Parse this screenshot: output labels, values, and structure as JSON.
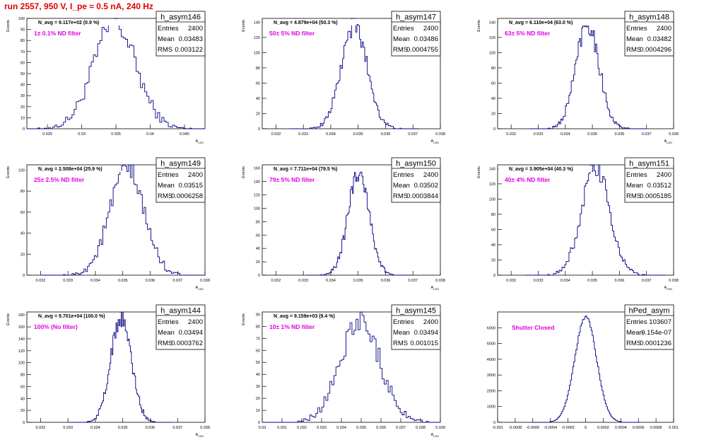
{
  "header": {
    "title": "run 2557,   950 V, I_pe ≈ 0.5 nA, 240 Hz"
  },
  "chart_data": [
    {
      "type": "bar",
      "name": "h_asym146",
      "title": "N_avg = 9.117e+02 (0.9 %)",
      "label": "1± 0.1% ND filter",
      "xlabel": "A_LED",
      "ylabel": "Events",
      "xlim": [
        0.022,
        0.048
      ],
      "ylim": [
        0,
        100
      ],
      "xticks": [
        "0.025",
        "0.03",
        "0.035",
        "0.04",
        "0.045"
      ],
      "xtick_values": [
        0.025,
        0.03,
        0.035,
        0.04,
        0.045
      ],
      "yticks": [
        0,
        10,
        20,
        30,
        40,
        50,
        60,
        70,
        80,
        90,
        100
      ],
      "stats": {
        "entries": "2400",
        "mean": "0.03483",
        "rms": "0.003122"
      },
      "mean": 0.03483,
      "rms": 0.003122,
      "entries": 2400,
      "peak": 95
    },
    {
      "type": "bar",
      "name": "h_asym147",
      "title": "N_avg = 4.879e+04 (50.3 %)",
      "label": "50± 5% ND filter",
      "xlabel": "A_LED",
      "ylabel": "Events",
      "xlim": [
        0.0315,
        0.038
      ],
      "ylim": [
        0,
        145
      ],
      "xticks": [
        "0.032",
        "0.033",
        "0.034",
        "0.035",
        "0.036",
        "0.037",
        "0.038"
      ],
      "xtick_values": [
        0.032,
        0.033,
        0.034,
        0.035,
        0.036,
        0.037,
        0.038
      ],
      "yticks": [
        0,
        20,
        40,
        60,
        80,
        100,
        120,
        140
      ],
      "stats": {
        "entries": "2400",
        "mean": "0.03486",
        "rms": "0.0004755"
      },
      "mean": 0.03486,
      "rms": 0.0004755,
      "entries": 2400,
      "peak": 135
    },
    {
      "type": "bar",
      "name": "h_asym148",
      "title": "N_avg = 6.110e+04 (63.0 %)",
      "label": "63± 5% ND filter",
      "xlabel": "A_LED",
      "ylabel": "Events",
      "xlim": [
        0.0315,
        0.038
      ],
      "ylim": [
        0,
        145
      ],
      "xticks": [
        "0.032",
        "0.033",
        "0.034",
        "0.035",
        "0.036",
        "0.037",
        "0.038"
      ],
      "xtick_values": [
        0.032,
        0.033,
        0.034,
        0.035,
        0.036,
        0.037,
        0.038
      ],
      "yticks": [
        0,
        20,
        40,
        60,
        80,
        100,
        120,
        140
      ],
      "stats": {
        "entries": "2400",
        "mean": "0.03482",
        "rms": "0.0004296"
      },
      "mean": 0.03482,
      "rms": 0.0004296,
      "entries": 2400,
      "peak": 140
    },
    {
      "type": "bar",
      "name": "h_asym149",
      "title": "N_avg = 2.508e+04 (25.9 %)",
      "label": "25± 2.5% ND filter",
      "xlabel": "A_LED",
      "ylabel": "Events",
      "xlim": [
        0.0315,
        0.038
      ],
      "ylim": [
        0,
        105
      ],
      "xticks": [
        "0.032",
        "0.033",
        "0.034",
        "0.035",
        "0.036",
        "0.037",
        "0.038"
      ],
      "xtick_values": [
        0.032,
        0.033,
        0.034,
        0.035,
        0.036,
        0.037,
        0.038
      ],
      "yticks": [
        0,
        20,
        40,
        60,
        80,
        100
      ],
      "stats": {
        "entries": "2400",
        "mean": "0.03515",
        "rms": "0.0006258"
      },
      "mean": 0.03515,
      "rms": 0.0006258,
      "entries": 2400,
      "peak": 100
    },
    {
      "type": "bar",
      "name": "h_asym150",
      "title": "N_avg = 7.711e+04 (79.5 %)",
      "label": "79± 5% ND filter",
      "xlabel": "A_LED",
      "ylabel": "Events",
      "xlim": [
        0.0315,
        0.038
      ],
      "ylim": [
        0,
        165
      ],
      "xticks": [
        "0.032",
        "0.033",
        "0.034",
        "0.035",
        "0.036",
        "0.037",
        "0.038"
      ],
      "xtick_values": [
        0.032,
        0.033,
        0.034,
        0.035,
        0.036,
        0.037,
        0.038
      ],
      "yticks": [
        0,
        20,
        40,
        60,
        80,
        100,
        120,
        140,
        160
      ],
      "stats": {
        "entries": "2400",
        "mean": "0.03502",
        "rms": "0.0003844"
      },
      "mean": 0.03502,
      "rms": 0.0003844,
      "entries": 2400,
      "peak": 155
    },
    {
      "type": "bar",
      "name": "h_asym151",
      "title": "N_avg = 3.905e+04 (40.3 %)",
      "label": "40± 4% ND filter",
      "xlabel": "A_LED",
      "ylabel": "Events",
      "xlim": [
        0.0315,
        0.038
      ],
      "ylim": [
        0,
        145
      ],
      "xticks": [
        "0.032",
        "0.033",
        "0.034",
        "0.035",
        "0.036",
        "0.037",
        "0.038"
      ],
      "xtick_values": [
        0.032,
        0.033,
        0.034,
        0.035,
        0.036,
        0.037,
        0.038
      ],
      "yticks": [
        0,
        20,
        40,
        60,
        80,
        100,
        120,
        140
      ],
      "stats": {
        "entries": "2400",
        "mean": "0.03512",
        "rms": "0.0005185"
      },
      "mean": 0.03512,
      "rms": 0.0005185,
      "entries": 2400,
      "peak": 140
    },
    {
      "type": "bar",
      "name": "h_asym144",
      "title": "N_avg = 9.701e+04 (100.0 %)",
      "label": "100% (No filter)",
      "xlabel": "A_LED",
      "ylabel": "Events",
      "xlim": [
        0.0315,
        0.038
      ],
      "ylim": [
        0,
        185
      ],
      "xticks": [
        "0.032",
        "0.033",
        "0.034",
        "0.035",
        "0.036",
        "0.037",
        "0.038"
      ],
      "xtick_values": [
        0.032,
        0.033,
        0.034,
        0.035,
        0.036,
        0.037,
        0.038
      ],
      "yticks": [
        0,
        20,
        40,
        60,
        80,
        100,
        120,
        140,
        160,
        180
      ],
      "stats": {
        "entries": "2400",
        "mean": "0.03494",
        "rms": "0.0003762"
      },
      "mean": 0.03494,
      "rms": 0.0003762,
      "entries": 2400,
      "peak": 175
    },
    {
      "type": "bar",
      "name": "h_asym145",
      "title": "N_avg = 9.159e+03 (9.4 %)",
      "label": "10± 1% ND filter",
      "xlabel": "A_LED",
      "ylabel": "Events",
      "xlim": [
        0.03,
        0.039
      ],
      "ylim": [
        0,
        92
      ],
      "xticks": [
        "0.03",
        "0.031",
        "0.032",
        "0.033",
        "0.034",
        "0.035",
        "0.036",
        "0.037",
        "0.038",
        "0.039"
      ],
      "xtick_values": [
        0.03,
        0.031,
        0.032,
        0.033,
        0.034,
        0.035,
        0.036,
        0.037,
        0.038,
        0.039
      ],
      "yticks": [
        0,
        10,
        20,
        30,
        40,
        50,
        60,
        70,
        80,
        90
      ],
      "stats": {
        "entries": "2400",
        "mean": "0.03494",
        "rms": "0.001015"
      },
      "mean": 0.03494,
      "rms": 0.001015,
      "entries": 2400,
      "peak": 85
    },
    {
      "type": "bar",
      "name": "hPed_asym",
      "title": "",
      "label": "Shutter Closed",
      "xlabel": "",
      "ylabel": "",
      "xlim": [
        -0.001,
        0.001
      ],
      "ylim": [
        0,
        7000
      ],
      "xticks": [
        "-0.001",
        "-0.0008",
        "-0.0006",
        "-0.0004",
        "-0.0002",
        "0",
        "0.0002",
        "0.0004",
        "0.0006",
        "0.0008",
        "0.001"
      ],
      "xtick_values": [
        -0.001,
        -0.0008,
        -0.0006,
        -0.0004,
        -0.0002,
        0,
        0.0002,
        0.0004,
        0.0006,
        0.0008,
        0.001
      ],
      "yticks": [
        0,
        1000,
        2000,
        3000,
        4000,
        5000,
        6000
      ],
      "stats": {
        "entries": "103607",
        "mean": "9.154e-07",
        "rms": "0.0001236"
      },
      "mean": 9.15e-07,
      "rms": 0.0001236,
      "entries": 103607,
      "peak": 6700
    }
  ],
  "colors": {
    "title": "#e00000",
    "label": "#e000e0",
    "histogram": "#000080",
    "axis": "#000000"
  }
}
